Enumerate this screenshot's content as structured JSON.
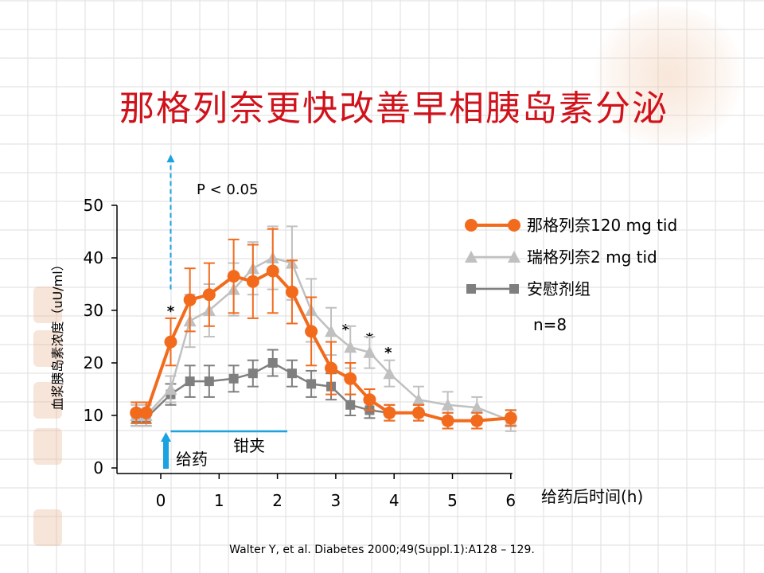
{
  "title": "那格列奈更快改善早相胰岛素分泌",
  "citation": "Walter Y, et al. Diabetes 2000;49(Suppl.1):A128 – 129.",
  "colors": {
    "title": "#d0121b",
    "nateglinide": "#f26b1d",
    "repaglinide": "#c0c0c0",
    "placebo": "#7f7f7f",
    "cyan_marker": "#1aa3e0"
  },
  "chart_data": {
    "type": "line",
    "xlabel": "给药后时间(h)",
    "ylabel": "血浆胰岛素浓度（uU/ml）",
    "xlim": [
      -0.5,
      6
    ],
    "ylim": [
      0,
      50
    ],
    "xticks": [
      0,
      1,
      2,
      3,
      4,
      5,
      6
    ],
    "yticks": [
      0,
      10,
      20,
      30,
      40,
      50
    ],
    "grid": false,
    "legend_position": "right",
    "annotations": {
      "p_value": "P < 0.05",
      "dose_label": "给药",
      "clamp_label": "钳夹",
      "n_label": "n=8",
      "significance_marker": "*",
      "significance_x": [
        0.17,
        3.17,
        3.58,
        3.9
      ]
    },
    "clamp_range": [
      0.17,
      2.17
    ],
    "series": [
      {
        "name": "那格列奈120 mg tid",
        "marker": "circle",
        "x": [
          -0.42,
          -0.25,
          0.17,
          0.5,
          0.83,
          1.25,
          1.58,
          1.92,
          2.25,
          2.58,
          2.92,
          3.25,
          3.58,
          3.92,
          4.42,
          4.92,
          5.42,
          6.0
        ],
        "y": [
          10.5,
          10.5,
          24,
          32,
          33,
          36.5,
          35.5,
          37.5,
          33.5,
          26,
          19,
          17,
          13,
          10.5,
          10.5,
          9,
          9,
          9.5
        ],
        "err": [
          2,
          2,
          4.5,
          6,
          6,
          7,
          7,
          8,
          6,
          6.5,
          5,
          3,
          2,
          1.5,
          1.5,
          1.5,
          1.5,
          1.5
        ]
      },
      {
        "name": "瑞格列奈2 mg tid",
        "marker": "triangle",
        "x": [
          -0.42,
          -0.25,
          0.17,
          0.5,
          0.83,
          1.25,
          1.58,
          1.92,
          2.25,
          2.58,
          2.92,
          3.25,
          3.58,
          3.92,
          4.42,
          4.92,
          5.42,
          6.0
        ],
        "y": [
          10,
          10,
          15,
          28,
          30,
          34,
          38,
          40,
          39,
          30,
          26,
          23,
          22,
          18,
          13,
          12,
          11.5,
          9
        ],
        "err": [
          2,
          2,
          2.5,
          5,
          5,
          5,
          5,
          6,
          7,
          6,
          4.5,
          4,
          3,
          2.5,
          2.5,
          2.5,
          2,
          2
        ]
      },
      {
        "name": "安慰剂组",
        "marker": "square",
        "x": [
          -0.42,
          -0.25,
          0.17,
          0.5,
          0.83,
          1.25,
          1.58,
          1.92,
          2.25,
          2.58,
          2.92,
          3.25,
          3.58,
          3.92,
          4.42,
          4.92,
          5.42,
          6.0
        ],
        "y": [
          9.5,
          9.5,
          14,
          16.5,
          16.5,
          17,
          18,
          20,
          18,
          16,
          15.5,
          12,
          11,
          10.5,
          10.5,
          9,
          9,
          9.5
        ],
        "err": [
          1.5,
          1.5,
          2,
          3,
          3,
          2.5,
          2.5,
          2.5,
          2.5,
          2.5,
          2.5,
          2,
          1.5,
          1.5,
          1.5,
          1.5,
          1.5,
          1.5
        ]
      }
    ]
  }
}
